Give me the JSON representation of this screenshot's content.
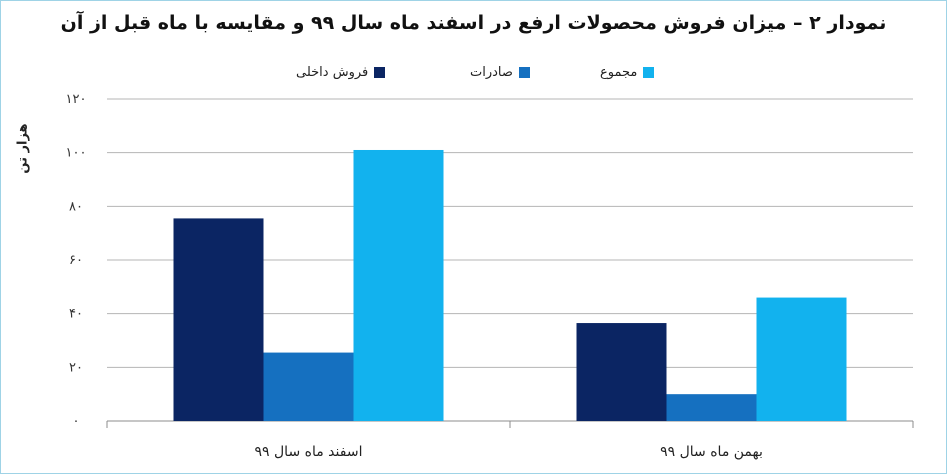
{
  "chart_data": {
    "type": "bar",
    "title": "نمودار ۲ – میزان فروش محصولات ارفع در اسفند ماه سال ۹۹ و مقایسه با ماه قبل از آن",
    "ylabel": "هزار تن",
    "ylim": [
      0,
      120
    ],
    "yticks": [
      {
        "value": 0,
        "label": "۰"
      },
      {
        "value": 20,
        "label": "۲۰"
      },
      {
        "value": 40,
        "label": "۴۰"
      },
      {
        "value": 60,
        "label": "۶۰"
      },
      {
        "value": 80,
        "label": "۸۰"
      },
      {
        "value": 100,
        "label": "۱۰۰"
      },
      {
        "value": 120,
        "label": "۱۲۰"
      }
    ],
    "categories": [
      "اسفند ماه سال ۹۹",
      "بهمن ماه سال ۹۹"
    ],
    "series": [
      {
        "name": "فروش داخلی",
        "color": "#0b2563",
        "values": [
          75.5,
          36.5
        ]
      },
      {
        "name": "صادرات",
        "color": "#1570c0",
        "values": [
          25.5,
          10
        ]
      },
      {
        "name": "مجموع",
        "color": "#12b2ee",
        "values": [
          101,
          46
        ]
      }
    ],
    "grid": true,
    "legend": "top"
  }
}
